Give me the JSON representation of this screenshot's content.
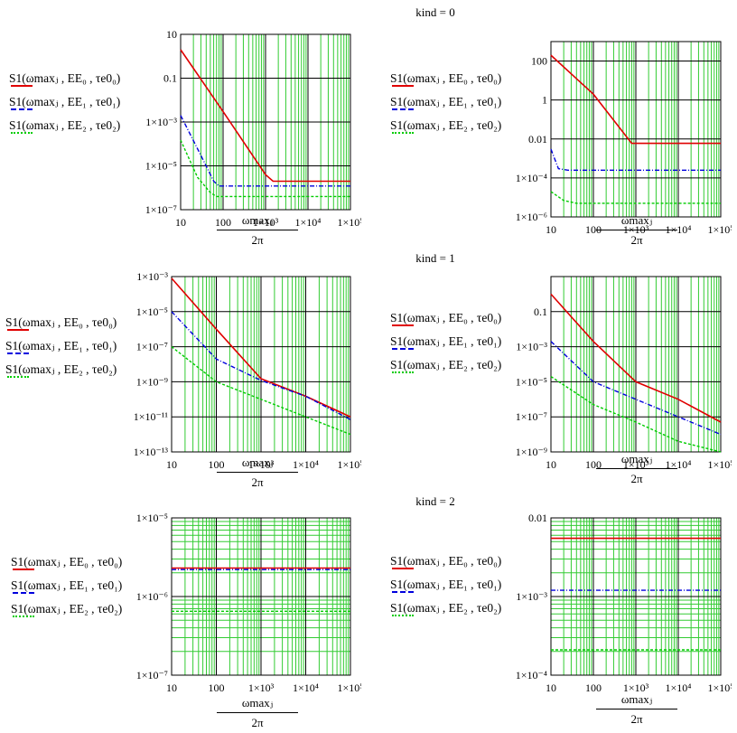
{
  "kind_labels": [
    "kind = 0",
    "kind = 1",
    "kind = 2"
  ],
  "legend": [
    "S1(ωmaxⱼ , EE₀ , τe0₀)",
    "S1(ωmaxⱼ , EE₁ , τe0₁)",
    "S1(ωmaxⱼ , EE₂ , τe0₂)"
  ],
  "x_label": {
    "numerator": "ωmaxⱼ",
    "denominator": "2π"
  },
  "x_ticks": [
    "10",
    "100",
    "1×10³",
    "1×10⁴",
    "1×10⁵"
  ],
  "colors": {
    "series0": "#e00000",
    "series1": "#0000dd",
    "series2": "#00cc00",
    "grid_minor": "#33cc33",
    "grid_major": "#000000"
  },
  "chart_data": [
    {
      "type": "line",
      "kind": 0,
      "panel": "left",
      "log_x": true,
      "log_y": true,
      "xlim": [
        10,
        100000
      ],
      "ylim": [
        1e-07,
        10
      ],
      "y_ticks": [
        "1×10⁻⁷",
        "1×10⁻⁵",
        "1×10⁻³",
        "0.1",
        "10"
      ],
      "y_tick_values": [
        1e-07,
        1e-05,
        0.001,
        0.1,
        10
      ],
      "series": [
        {
          "x": [
            10,
            100,
            1000,
            1500,
            100000
          ],
          "y": [
            2,
            0.003,
            4e-06,
            2e-06,
            2e-06
          ]
        },
        {
          "x": [
            10,
            30,
            60,
            80,
            100000
          ],
          "y": [
            0.002,
            3e-05,
            2e-06,
            1.2e-06,
            1.2e-06
          ]
        },
        {
          "x": [
            10,
            25,
            50,
            70,
            100000
          ],
          "y": [
            0.00015,
            3e-06,
            6e-07,
            4e-07,
            4e-07
          ]
        }
      ]
    },
    {
      "type": "line",
      "kind": 0,
      "panel": "right",
      "log_x": true,
      "log_y": true,
      "xlim": [
        10,
        100000
      ],
      "ylim": [
        1e-06,
        1000
      ],
      "y_ticks": [
        "1×10⁻⁶",
        "1×10⁻⁴",
        "0.01",
        "1",
        "100"
      ],
      "y_tick_values": [
        1e-06,
        0.0001,
        0.01,
        1,
        100
      ],
      "series": [
        {
          "x": [
            10,
            100,
            800,
            100000
          ],
          "y": [
            200,
            2,
            0.006,
            0.006
          ]
        },
        {
          "x": [
            10,
            15,
            25,
            100000
          ],
          "y": [
            0.003,
            0.0003,
            0.00025,
            0.00025
          ]
        },
        {
          "x": [
            10,
            20,
            40,
            100000
          ],
          "y": [
            2e-05,
            7e-06,
            5e-06,
            5e-06
          ]
        }
      ]
    },
    {
      "type": "line",
      "kind": 1,
      "panel": "left",
      "log_x": true,
      "log_y": true,
      "xlim": [
        10,
        100000
      ],
      "ylim": [
        1e-13,
        0.001
      ],
      "y_ticks": [
        "1×10⁻¹³",
        "1×10⁻¹¹",
        "1×10⁻⁹",
        "1×10⁻⁷",
        "1×10⁻⁵",
        "1×10⁻³"
      ],
      "y_tick_values": [
        1e-13,
        1e-11,
        1e-09,
        1e-07,
        1e-05,
        0.001
      ],
      "series": [
        {
          "x": [
            10,
            100,
            1000,
            10000,
            100000
          ],
          "y": [
            0.0008,
            1e-06,
            1.5e-09,
            1.5e-10,
            1e-11
          ]
        },
        {
          "x": [
            10,
            100,
            1000,
            10000,
            100000
          ],
          "y": [
            1e-05,
            2e-08,
            1.2e-09,
            1.5e-10,
            7e-12
          ]
        },
        {
          "x": [
            10,
            100,
            1000,
            10000,
            100000
          ],
          "y": [
            1e-07,
            1e-09,
            1e-10,
            1e-11,
            1e-12
          ]
        }
      ]
    },
    {
      "type": "line",
      "kind": 1,
      "panel": "right",
      "log_x": true,
      "log_y": true,
      "xlim": [
        10,
        100000
      ],
      "ylim": [
        1e-09,
        10
      ],
      "y_ticks": [
        "1×10⁻⁹",
        "1×10⁻⁷",
        "1×10⁻⁵",
        "1×10⁻³",
        "0.1"
      ],
      "y_tick_values": [
        1e-09,
        1e-07,
        1e-05,
        0.001,
        0.1
      ],
      "series": [
        {
          "x": [
            10,
            100,
            1000,
            10000,
            100000
          ],
          "y": [
            1,
            0.002,
            1e-05,
            1e-06,
            5e-08
          ]
        },
        {
          "x": [
            10,
            100,
            1000,
            10000,
            100000
          ],
          "y": [
            0.002,
            1e-05,
            1e-06,
            1e-07,
            1e-08
          ]
        },
        {
          "x": [
            10,
            100,
            1000,
            10000,
            100000
          ],
          "y": [
            2e-05,
            5e-07,
            5e-08,
            4e-09,
            1e-09
          ]
        }
      ]
    },
    {
      "type": "line",
      "kind": 2,
      "panel": "left",
      "log_x": true,
      "log_y": true,
      "xlim": [
        10,
        100000
      ],
      "ylim": [
        1e-07,
        1e-05
      ],
      "y_ticks": [
        "1×10⁻⁷",
        "1×10⁻⁶",
        "1×10⁻⁵"
      ],
      "y_tick_values": [
        1e-07,
        1e-06,
        1e-05
      ],
      "series": [
        {
          "x": [
            10,
            100000
          ],
          "y": [
            2.3e-06,
            2.3e-06
          ]
        },
        {
          "x": [
            10,
            100000
          ],
          "y": [
            2.2e-06,
            2.2e-06
          ]
        },
        {
          "x": [
            10,
            100000
          ],
          "y": [
            6.5e-07,
            6.5e-07
          ]
        }
      ]
    },
    {
      "type": "line",
      "kind": 2,
      "panel": "right",
      "log_x": true,
      "log_y": true,
      "xlim": [
        10,
        100000
      ],
      "ylim": [
        0.0001,
        0.01
      ],
      "y_ticks": [
        "1×10⁻⁴",
        "1×10⁻³",
        "0.01"
      ],
      "y_tick_values": [
        0.0001,
        0.001,
        0.01
      ],
      "series": [
        {
          "x": [
            10,
            100000
          ],
          "y": [
            0.0055,
            0.0055
          ]
        },
        {
          "x": [
            10,
            100000
          ],
          "y": [
            0.0012,
            0.0012
          ]
        },
        {
          "x": [
            10,
            100000
          ],
          "y": [
            0.00021,
            0.00021
          ]
        }
      ]
    }
  ]
}
